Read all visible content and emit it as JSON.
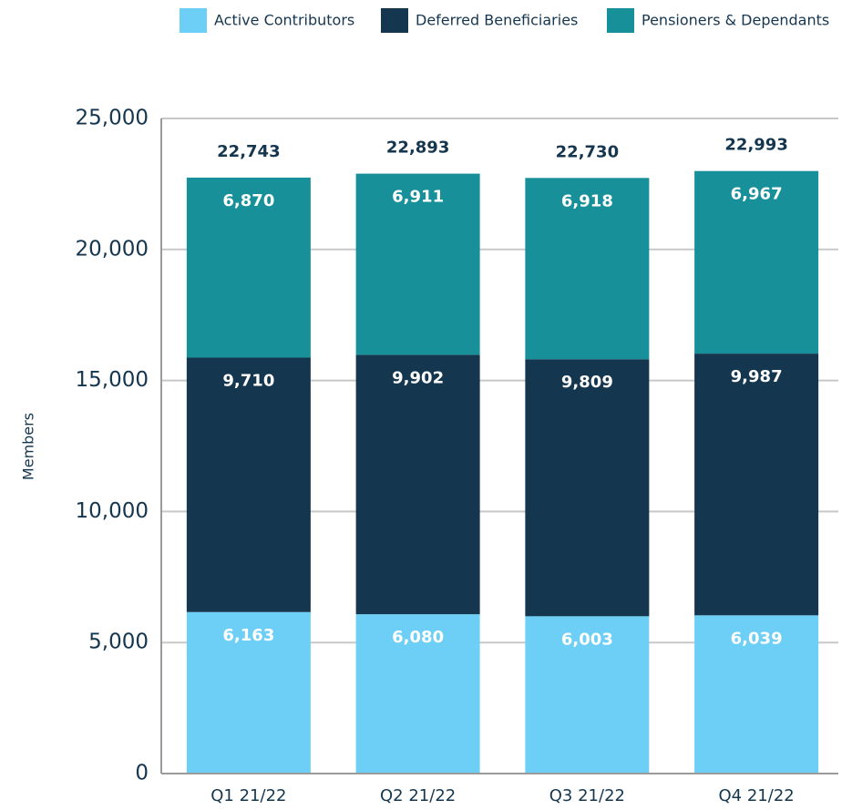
{
  "chart_data": {
    "type": "stacked_bar",
    "y_label": "Members",
    "categories": [
      "Q1 21/22",
      "Q2 21/22",
      "Q3 21/22",
      "Q4 21/22"
    ],
    "series": [
      {
        "name": "Active Contributors",
        "color": "#6dcff6",
        "values": [
          6163,
          6080,
          6003,
          6039
        ],
        "value_labels": [
          "6,163",
          "6,080",
          "6,003",
          "6,039"
        ]
      },
      {
        "name": "Deferred Beneficiaries",
        "color": "#15364f",
        "values": [
          9710,
          9902,
          9809,
          9987
        ],
        "value_labels": [
          "9,710",
          "9,902",
          "9,809",
          "9,987"
        ]
      },
      {
        "name": "Pensioners & Dependants",
        "color": "#17909a",
        "values": [
          6870,
          6911,
          6918,
          6967
        ],
        "value_labels": [
          "6,870",
          "6,911",
          "6,918",
          "6,967"
        ]
      }
    ],
    "totals": {
      "values": [
        22743,
        22893,
        22730,
        22993
      ],
      "value_labels": [
        "22,743",
        "22,893",
        "22,730",
        "22,993"
      ]
    },
    "ylim": [
      0,
      25000
    ],
    "yticks": [
      0,
      {
        "value": 5000,
        "label": "5,000"
      },
      {
        "value": 10000,
        "label": "10,000"
      },
      {
        "value": 15000,
        "label": "15,000"
      },
      {
        "value": 20000,
        "label": "20,000"
      },
      {
        "value": 25000,
        "label": "25,000"
      }
    ],
    "grid": true,
    "legend": "top"
  }
}
